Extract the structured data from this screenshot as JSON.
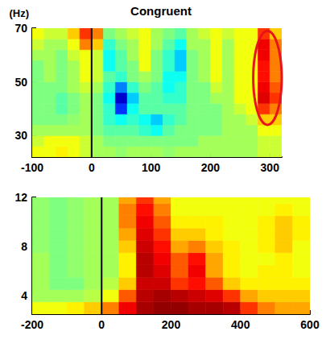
{
  "chart_data": [
    {
      "type": "heatmap",
      "title": "Congruent",
      "y_label": "(Hz)",
      "xlim": [
        -100,
        320
      ],
      "xticks": [
        -100,
        0,
        100,
        200,
        300
      ],
      "ylim": [
        22,
        70
      ],
      "yticks": [
        30,
        50,
        70
      ],
      "grid": false,
      "zlim": [
        -1,
        1
      ],
      "event_x": 0,
      "highlight": {
        "x": [
          272,
          320
        ],
        "y": [
          34,
          69
        ],
        "color": "#e8141c"
      },
      "x": [
        -90,
        -70,
        -50,
        -30,
        -10,
        10,
        30,
        50,
        70,
        90,
        110,
        130,
        150,
        170,
        190,
        210,
        230,
        250,
        270,
        290,
        310
      ],
      "y": [
        24,
        28,
        32,
        36,
        40,
        44,
        48,
        52,
        56,
        60,
        64,
        68
      ],
      "cells": [
        [
          0.3,
          0.3,
          0.35,
          0.3,
          0.2,
          0.1,
          0.1,
          0.05,
          0.1,
          0.1,
          0.1,
          0.05,
          0.1,
          0.1,
          0.1,
          0.1,
          0.1,
          0.1,
          0.1,
          0.2,
          0.2
        ],
        [
          0.2,
          0.3,
          0.3,
          0.3,
          0.2,
          0.1,
          0,
          0,
          0,
          0,
          0,
          0,
          0,
          0,
          0.1,
          0.1,
          0.1,
          0.1,
          0.1,
          0.2,
          0.2
        ],
        [
          0.1,
          0.1,
          0.1,
          0.1,
          0.1,
          0,
          -0.1,
          -0.1,
          -0.1,
          -0.2,
          -0.3,
          -0.1,
          0,
          0,
          0,
          0,
          0.1,
          0.1,
          0.1,
          0.3,
          0.3
        ],
        [
          0,
          0,
          0,
          0.05,
          0.1,
          0,
          -0.2,
          -0.3,
          -0.2,
          -0.3,
          -0.4,
          -0.2,
          -0.1,
          0,
          0,
          0,
          0.1,
          0.1,
          0.2,
          0.4,
          0.4
        ],
        [
          0,
          0,
          -0.1,
          0,
          0.1,
          0,
          -0.2,
          -0.6,
          -0.3,
          -0.1,
          -0.1,
          -0.1,
          -0.1,
          0,
          0,
          0,
          0.1,
          0.2,
          0.3,
          0.6,
          0.5
        ],
        [
          0,
          0,
          -0.1,
          0,
          0.1,
          0,
          -0.3,
          -0.8,
          -0.4,
          -0.1,
          -0.1,
          -0.2,
          -0.2,
          0,
          0,
          0.1,
          0.1,
          0.3,
          0.3,
          0.75,
          0.6
        ],
        [
          0,
          0,
          0,
          0.1,
          0.2,
          0.1,
          -0.2,
          -0.5,
          -0.2,
          0,
          -0.1,
          -0.3,
          -0.2,
          0,
          0,
          0.2,
          0.1,
          0.3,
          0.3,
          0.7,
          0.55
        ],
        [
          0,
          0.1,
          0,
          0.1,
          0.3,
          0.2,
          -0.1,
          -0.2,
          0,
          0.1,
          0,
          -0.3,
          -0.3,
          0,
          0.1,
          0.3,
          0.1,
          0.3,
          0.3,
          0.65,
          0.5
        ],
        [
          0,
          0.1,
          0,
          0.1,
          0.3,
          0.2,
          -0.3,
          -0.1,
          0,
          0.3,
          0,
          -0.2,
          -0.4,
          0,
          0.1,
          0.3,
          0.1,
          0.3,
          0.3,
          0.65,
          0.5
        ],
        [
          0.1,
          0.1,
          0,
          0.2,
          0.3,
          0.2,
          -0.3,
          -0.1,
          0.1,
          0.3,
          0,
          -0.2,
          -0.4,
          0,
          0.1,
          0.3,
          0.1,
          0.3,
          0.3,
          0.7,
          0.5
        ],
        [
          0.2,
          0.1,
          0.1,
          0.3,
          0.5,
          0.4,
          -0.2,
          0,
          0.1,
          0.3,
          0.1,
          -0.1,
          -0.3,
          0.1,
          0.1,
          0.3,
          0.1,
          0.3,
          0.3,
          0.7,
          0.5
        ],
        [
          0.3,
          0.2,
          0.2,
          0.4,
          0.6,
          0.5,
          0,
          0.1,
          0.2,
          0.3,
          0.1,
          0,
          -0.1,
          0.1,
          0.2,
          0.3,
          0.2,
          0.3,
          0.3,
          0.6,
          0.4
        ]
      ]
    },
    {
      "type": "heatmap",
      "xlim": [
        -200,
        600
      ],
      "xticks": [
        -200,
        0,
        200,
        400,
        600
      ],
      "ylim": [
        2.5,
        12
      ],
      "yticks": [
        4,
        8,
        12
      ],
      "grid": false,
      "zlim": [
        -1,
        1
      ],
      "event_x": 0,
      "x": [
        -175,
        -125,
        -75,
        -25,
        25,
        75,
        125,
        175,
        225,
        275,
        325,
        375,
        425,
        475,
        525,
        575
      ],
      "y": [
        3,
        4,
        5,
        6,
        7,
        8,
        9,
        10,
        11,
        12
      ],
      "cells": [
        [
          0.3,
          0.3,
          0.35,
          0.4,
          0.5,
          0.7,
          0.9,
          0.95,
          0.95,
          0.9,
          0.9,
          0.85,
          0.6,
          0.5,
          0.45,
          0.45
        ],
        [
          0.1,
          0.1,
          0.1,
          0.15,
          0.3,
          0.55,
          0.85,
          0.9,
          0.85,
          0.8,
          0.75,
          0.6,
          0.45,
          0.4,
          0.4,
          0.4
        ],
        [
          0.1,
          0,
          0,
          0.1,
          0.15,
          0.4,
          0.8,
          0.8,
          0.6,
          0.65,
          0.55,
          0.4,
          0.35,
          0.35,
          0.35,
          0.35
        ],
        [
          0.1,
          0,
          0.05,
          0.1,
          0.1,
          0.35,
          0.85,
          0.75,
          0.55,
          0.7,
          0.45,
          0.35,
          0.3,
          0.35,
          0.35,
          0.3
        ],
        [
          0.1,
          0,
          0.05,
          0.1,
          0.1,
          0.35,
          0.85,
          0.7,
          0.55,
          0.65,
          0.45,
          0.35,
          0.3,
          0.3,
          0.35,
          0.3
        ],
        [
          0.05,
          0,
          0.05,
          0.1,
          0.1,
          0.4,
          0.8,
          0.65,
          0.45,
          0.5,
          0.4,
          0.35,
          0.3,
          0.35,
          0.4,
          0.3
        ],
        [
          0.05,
          0,
          0.05,
          0.1,
          0.1,
          0.45,
          0.75,
          0.6,
          0.4,
          0.4,
          0.35,
          0.3,
          0.3,
          0.35,
          0.4,
          0.35
        ],
        [
          0.05,
          0,
          0.05,
          0.1,
          0.1,
          0.5,
          0.7,
          0.55,
          0.35,
          0.35,
          0.35,
          0.3,
          0.3,
          0.35,
          0.4,
          0.35
        ],
        [
          0.05,
          0,
          0.05,
          0.1,
          0.1,
          0.5,
          0.65,
          0.5,
          0.3,
          0.3,
          0.3,
          0.3,
          0.3,
          0.3,
          0.35,
          0.3
        ],
        [
          0.05,
          0,
          0.05,
          0.1,
          0.1,
          0.45,
          0.6,
          0.45,
          0.3,
          0.3,
          0.3,
          0.3,
          0.3,
          0.3,
          0.3,
          0.3
        ]
      ]
    }
  ]
}
